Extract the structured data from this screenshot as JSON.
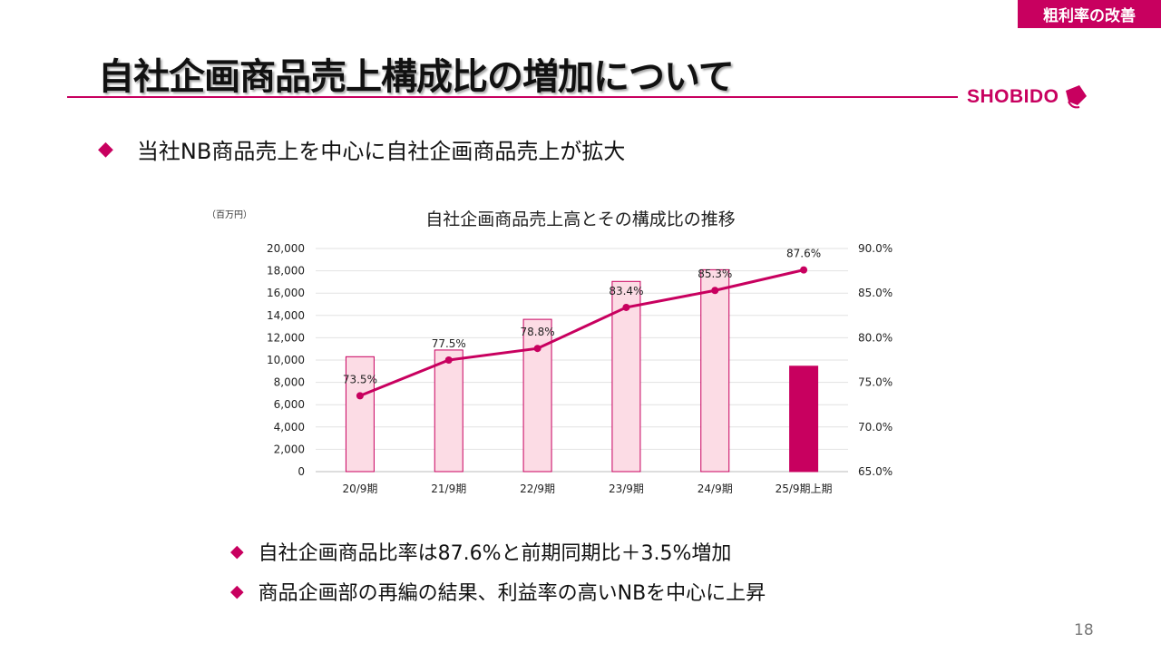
{
  "tag": "粗利率の改善",
  "title": "自社企画商品売上構成比の増加について",
  "logo": {
    "text": "SHOBIDO",
    "color": "#c8005f"
  },
  "bullets": {
    "top": "当社NB商品売上を中心に自社企画商品売上が拡大",
    "b1": "自社企画商品比率は87.6%と前期同期比＋3.5%増加",
    "b2": "商品企画部の再編の結果、利益率の高いNBを中心に上昇",
    "marker": "◆"
  },
  "page_number": "18",
  "colors": {
    "accent": "#c8005f",
    "bar_fill": "#fcdce5",
    "bar_stroke": "#c8005f",
    "highlight_bar": "#c8005f"
  },
  "chart_data": {
    "type": "bar",
    "title": "自社企画商品売上高とその構成比の推移",
    "unit_label": "（百万円）",
    "categories": [
      "20/9期",
      "21/9期",
      "22/9期",
      "23/9期",
      "24/9期",
      "25/9期上期"
    ],
    "series": [
      {
        "type": "bar",
        "values": [
          10300,
          10900,
          13650,
          17050,
          18100,
          9450
        ],
        "highlight_index": 5
      },
      {
        "type": "line",
        "values": [
          73.5,
          77.5,
          78.8,
          83.4,
          85.3,
          87.6
        ],
        "labels": [
          "73.5%",
          "77.5%",
          "78.8%",
          "83.4%",
          "85.3%",
          "87.6%"
        ]
      }
    ],
    "ylim_left": [
      0,
      20000
    ],
    "yticks_left": [
      "0",
      "2,000",
      "4,000",
      "6,000",
      "8,000",
      "10,000",
      "12,000",
      "14,000",
      "16,000",
      "18,000",
      "20,000"
    ],
    "ylim_right": [
      65,
      90
    ],
    "yticks_right": [
      "65.0%",
      "70.0%",
      "75.0%",
      "80.0%",
      "85.0%",
      "90.0%"
    ],
    "grid": true
  }
}
